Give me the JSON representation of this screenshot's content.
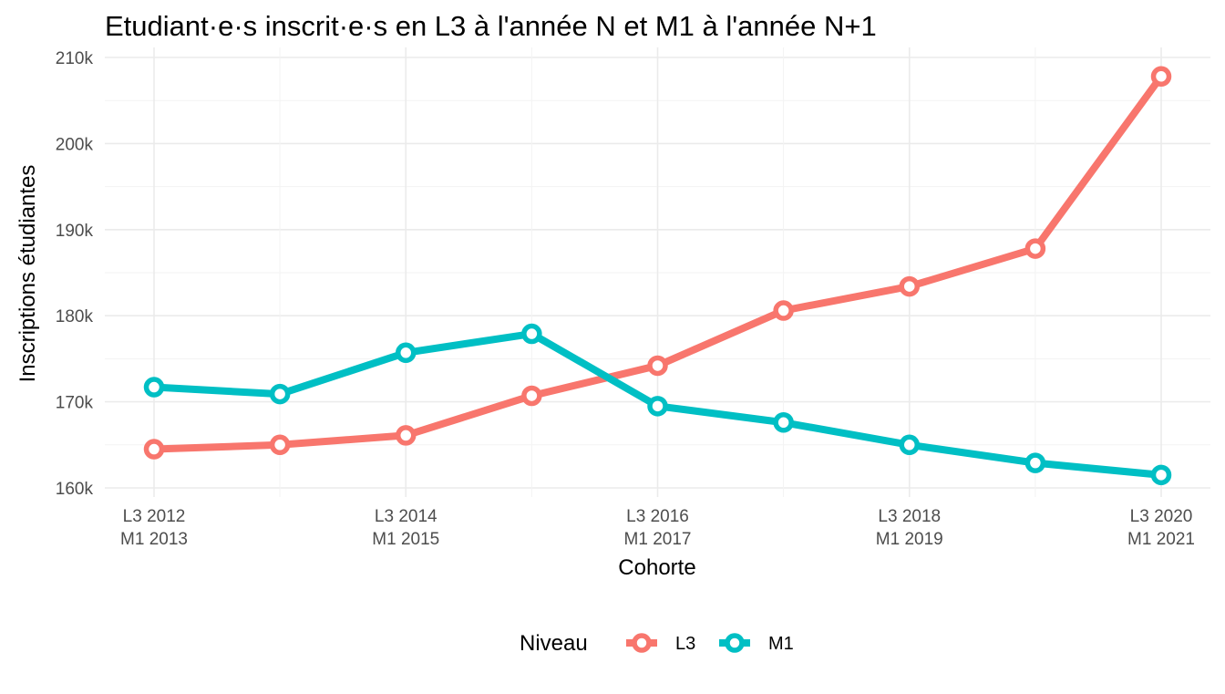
{
  "chart_data": {
    "type": "line",
    "title": "Etudiant·e·s  inscrit·e·s en L3 à l'année N et M1 à l'année N+1",
    "xlabel": "Cohorte",
    "ylabel": "Inscriptions étudiantes",
    "x": [
      2012,
      2013,
      2014,
      2015,
      2016,
      2017,
      2018,
      2019,
      2020
    ],
    "x_tick_labels": [
      {
        "x": 2012,
        "line1": "L3 2012",
        "line2": "M1 2013"
      },
      {
        "x": 2014,
        "line1": "L3 2014",
        "line2": "M1 2015"
      },
      {
        "x": 2016,
        "line1": "L3 2016",
        "line2": "M1 2017"
      },
      {
        "x": 2018,
        "line1": "L3 2018",
        "line2": "M1 2019"
      },
      {
        "x": 2020,
        "line1": "L3 2020",
        "line2": "M1 2021"
      }
    ],
    "y_ticks": [
      160000,
      170000,
      180000,
      190000,
      200000,
      210000
    ],
    "y_tick_labels": [
      "160k",
      "170k",
      "180k",
      "190k",
      "200k",
      "210k"
    ],
    "ylim": [
      160000,
      210000
    ],
    "xlim": [
      2012,
      2020
    ],
    "grid": true,
    "legend_position": "bottom",
    "legend_title": "Niveau",
    "series": [
      {
        "name": "L3",
        "color": "#F8766D",
        "values": [
          164500,
          165000,
          166100,
          170700,
          174200,
          180600,
          183400,
          187800,
          207800
        ]
      },
      {
        "name": "M1",
        "color": "#00BFC4",
        "values": [
          171700,
          170900,
          175700,
          177900,
          169500,
          167600,
          165000,
          162900,
          161500
        ]
      }
    ]
  }
}
